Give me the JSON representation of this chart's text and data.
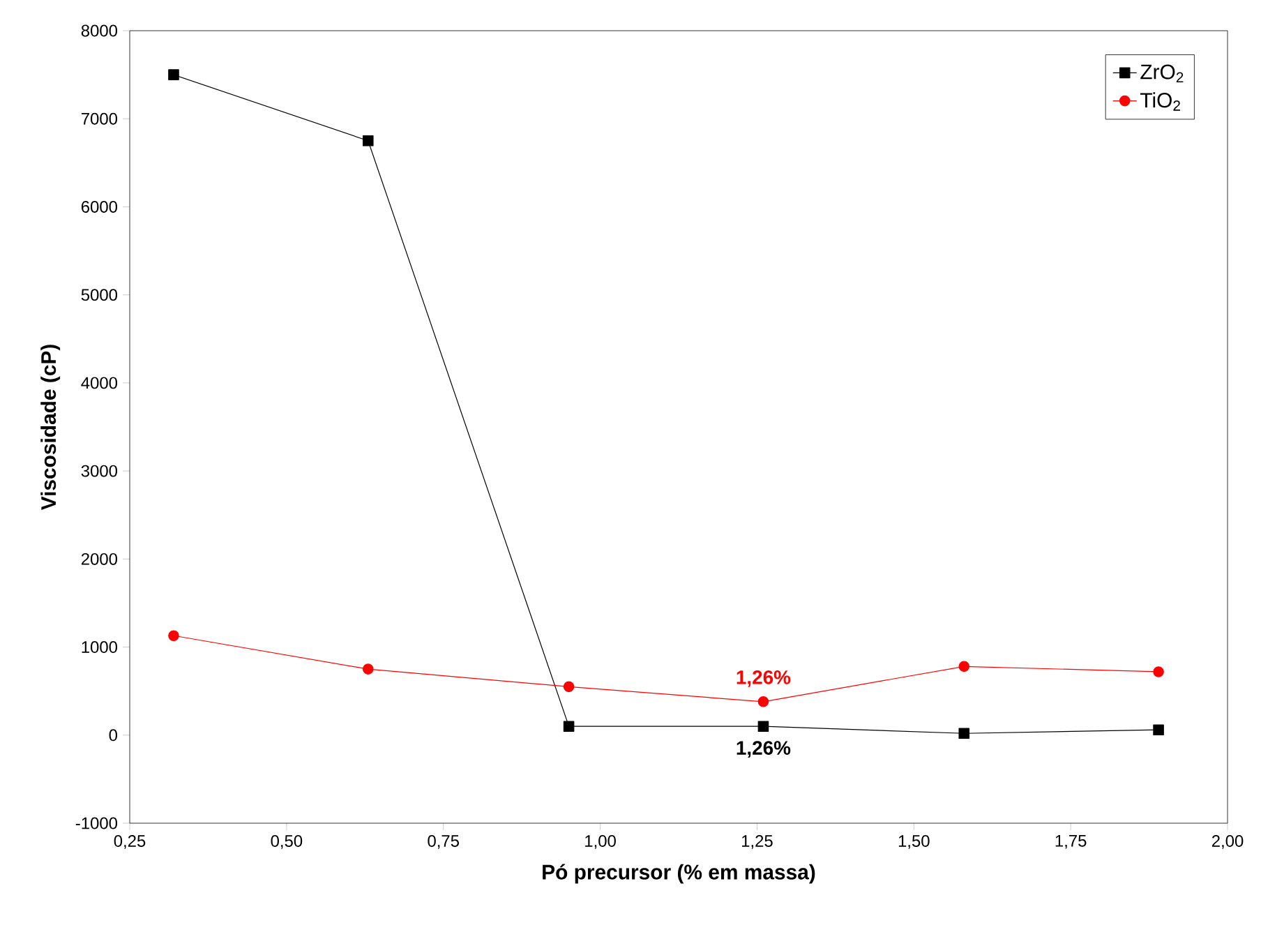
{
  "chart_data": {
    "type": "line",
    "xlabel": "Pó precursor (% em massa)",
    "ylabel": "Viscosidade (cP)",
    "x": [
      0.32,
      0.63,
      0.95,
      1.26,
      1.58,
      1.89
    ],
    "series": [
      {
        "name": "ZrO$_{2}$",
        "color": "#000000",
        "marker": "square",
        "values": [
          7500,
          6750,
          100,
          100,
          20,
          60
        ]
      },
      {
        "name": "TiO$_{2}$",
        "color": "#ff0000",
        "marker": "circle",
        "values": [
          1130,
          750,
          550,
          380,
          780,
          720
        ]
      }
    ],
    "annotations": [
      {
        "text": "1,26%",
        "x": 1.26,
        "y": 100
      },
      {
        "text": "1,26%",
        "x": 1.26,
        "y": 380
      }
    ],
    "xlim": [
      0.25,
      2.0
    ],
    "xticks": [
      {
        "value": 0.25,
        "label": "0,25"
      },
      {
        "value": 0.5,
        "label": "0,50"
      },
      {
        "value": 0.75,
        "label": "0,75"
      },
      {
        "value": 1.0,
        "label": "1,00"
      },
      {
        "value": 1.25,
        "label": "1,25"
      },
      {
        "value": 1.5,
        "label": "1,50"
      },
      {
        "value": 1.75,
        "label": "1,75"
      },
      {
        "value": 2.0,
        "label": "2,00"
      }
    ],
    "ylim": [
      -1000,
      8000
    ],
    "yticks": [
      -1000,
      0,
      1000,
      2000,
      3000,
      4000,
      5000,
      6000,
      7000,
      8000
    ],
    "legend": "top right",
    "grid": false,
    "line_style": "solid"
  }
}
